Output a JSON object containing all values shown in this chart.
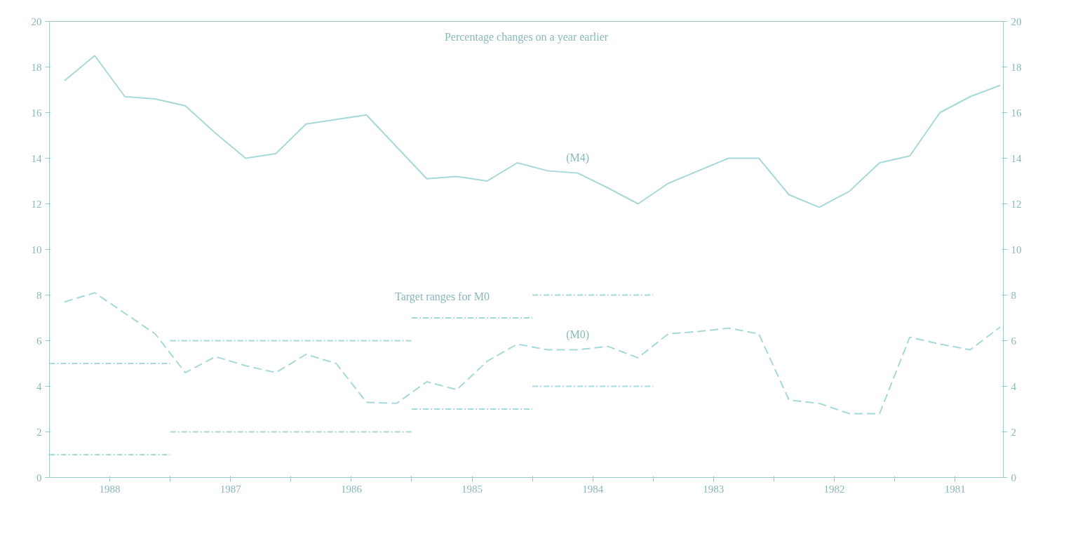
{
  "chart_data": {
    "type": "line",
    "title": "Percentage changes on a year earlier",
    "x": [
      1988.875,
      1988.625,
      1988.375,
      1988.125,
      1987.875,
      1987.625,
      1987.375,
      1987.125,
      1986.875,
      1986.625,
      1986.375,
      1986.125,
      1985.875,
      1985.625,
      1985.375,
      1985.125,
      1984.875,
      1984.625,
      1984.375,
      1984.125,
      1983.875,
      1983.625,
      1983.375,
      1983.125,
      1982.875,
      1982.625,
      1982.375,
      1982.125,
      1981.875,
      1981.625,
      1981.375,
      1981.125
    ],
    "series": [
      {
        "name": "(M4)",
        "color": "#a8d8d8",
        "line_style": "solid",
        "values": [
          17.4,
          18.5,
          16.7,
          16.6,
          16.3,
          15.1,
          14.0,
          14.2,
          15.5,
          15.7,
          15.9,
          14.5,
          13.1,
          13.2,
          13.0,
          13.8,
          13.45,
          13.35,
          12.7,
          12.0,
          12.9,
          13.45,
          14.0,
          14.0,
          12.4,
          11.85,
          12.55,
          13.8,
          14.1,
          16.0,
          16.7,
          17.2
        ]
      },
      {
        "name": "(M0)",
        "color": "#a8d8d8",
        "line_style": "dashed",
        "values": [
          7.7,
          8.1,
          7.2,
          6.3,
          4.6,
          5.3,
          4.9,
          4.6,
          5.4,
          5.0,
          3.3,
          3.25,
          4.2,
          3.85,
          5.1,
          5.85,
          5.6,
          5.6,
          5.75,
          5.25,
          6.3,
          6.4,
          6.55,
          6.3,
          3.4,
          3.25,
          2.8,
          2.8,
          6.15,
          5.85,
          5.6,
          6.6
        ]
      },
      {
        "color": "#a8d8d8",
        "line_style": "dotted",
        "x": [
          1989,
          1988
        ],
        "values": [
          5,
          5
        ]
      },
      {
        "color": "#a8d8d8",
        "line_style": "dotted",
        "x": [
          1989,
          1988
        ],
        "values": [
          1,
          1
        ]
      },
      {
        "color": "#a8d8d8",
        "line_style": "dotted",
        "x": [
          1988,
          1986
        ],
        "values": [
          6,
          6
        ]
      },
      {
        "color": "#a8d8d8",
        "line_style": "dotted",
        "x": [
          1988,
          1986
        ],
        "values": [
          2,
          2
        ]
      },
      {
        "color": "#a8d8d8",
        "line_style": "dotted",
        "x": [
          1986,
          1985
        ],
        "values": [
          7,
          7
        ]
      },
      {
        "color": "#a8d8d8",
        "line_style": "dotted",
        "x": [
          1986,
          1985
        ],
        "values": [
          3,
          3
        ]
      },
      {
        "color": "#a8d8d8",
        "line_style": "dotted",
        "x": [
          1985,
          1984
        ],
        "values": [
          8,
          8
        ]
      },
      {
        "color": "#a8d8d8",
        "line_style": "dotted",
        "x": [
          1985,
          1984
        ],
        "values": [
          4,
          4
        ]
      }
    ],
    "annotations": [
      "Target ranges for M0"
    ],
    "xlim": [
      1989,
      1981.1
    ],
    "xticks": [
      {
        "value": 1988,
        "label": null
      },
      {
        "value": 1987,
        "label": null
      },
      {
        "value": 1986,
        "label": null
      },
      {
        "value": 1985,
        "label": null
      },
      {
        "value": 1984,
        "label": null
      },
      {
        "value": 1983,
        "label": null
      },
      {
        "value": 1982,
        "label": null
      },
      {
        "value": 1988.5,
        "label": "1988"
      },
      {
        "value": 1987.5,
        "label": "1987"
      },
      {
        "value": 1986.5,
        "label": "1986"
      },
      {
        "value": 1985.5,
        "label": "1985"
      },
      {
        "value": 1984.5,
        "label": "1984"
      },
      {
        "value": 1983.5,
        "label": "1983"
      },
      {
        "value": 1982.5,
        "label": "1982"
      },
      {
        "value": 1981.5,
        "label": "1981"
      }
    ],
    "ylim": [
      0,
      20
    ],
    "yticks": [
      0,
      2,
      4,
      6,
      8,
      10,
      12,
      14,
      16,
      18,
      20
    ],
    "y2lim": [
      0,
      20
    ],
    "y2ticks": [
      0,
      2,
      4,
      6,
      8,
      10,
      12,
      14,
      16,
      18,
      20
    ],
    "grid": false
  }
}
